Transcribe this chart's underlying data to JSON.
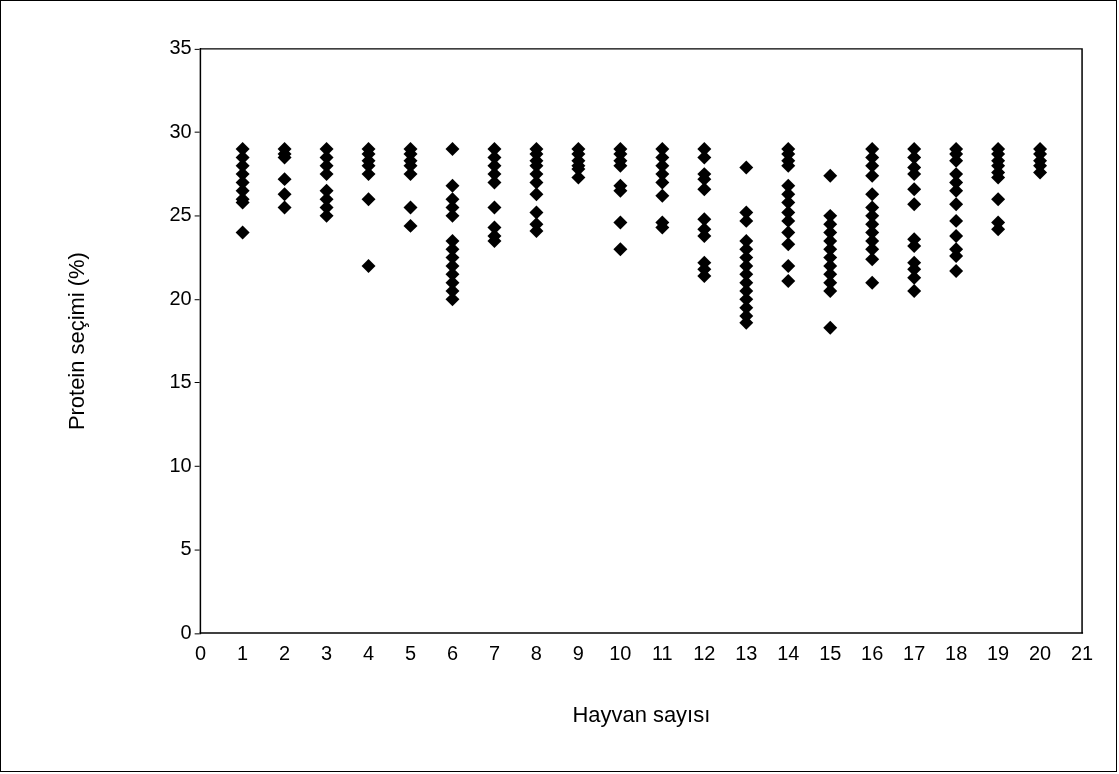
{
  "chart_data": {
    "type": "scatter",
    "xlabel": "Hayvan sayısı",
    "ylabel": "Protein seçimi (%)",
    "xlim": [
      0,
      21
    ],
    "xticks": [
      0,
      1,
      2,
      3,
      4,
      5,
      6,
      7,
      8,
      9,
      10,
      11,
      12,
      13,
      14,
      15,
      16,
      17,
      18,
      19,
      20,
      21
    ],
    "ylim": [
      0,
      35
    ],
    "yticks": [
      0,
      5,
      10,
      15,
      20,
      25,
      30,
      35
    ],
    "marker": "diamond",
    "grid": false,
    "legend": false,
    "series": [
      {
        "color": "#000000",
        "x": [
          1,
          1,
          1,
          1,
          1,
          1,
          1,
          1,
          1,
          2,
          2,
          2,
          2,
          2,
          2,
          3,
          3,
          3,
          3,
          3,
          3,
          3,
          3,
          4,
          4,
          4,
          4,
          4,
          4,
          4,
          5,
          5,
          5,
          5,
          5,
          5,
          5,
          6,
          6,
          6,
          6,
          6,
          6,
          6,
          6,
          6,
          6,
          6,
          6,
          6,
          7,
          7,
          7,
          7,
          7,
          7,
          7,
          7,
          7,
          8,
          8,
          8,
          8,
          8,
          8,
          8,
          8,
          8,
          8,
          9,
          9,
          9,
          9,
          9,
          9,
          10,
          10,
          10,
          10,
          10,
          10,
          10,
          10,
          11,
          11,
          11,
          11,
          11,
          11,
          11,
          11,
          12,
          12,
          12,
          12,
          12,
          12,
          12,
          12,
          12,
          12,
          12,
          13,
          13,
          13,
          13,
          13,
          13,
          13,
          13,
          13,
          13,
          13,
          13,
          13,
          13,
          14,
          14,
          14,
          14,
          14,
          14,
          14,
          14,
          14,
          14,
          14,
          14,
          14,
          15,
          15,
          15,
          15,
          15,
          15,
          15,
          15,
          15,
          15,
          15,
          15,
          16,
          16,
          16,
          16,
          16,
          16,
          16,
          16,
          16,
          16,
          16,
          16,
          16,
          17,
          17,
          17,
          17,
          17,
          17,
          17,
          17,
          17,
          17,
          17,
          17,
          18,
          18,
          18,
          18,
          18,
          18,
          18,
          18,
          18,
          18,
          18,
          18,
          19,
          19,
          19,
          19,
          19,
          19,
          19,
          19,
          19,
          20,
          20,
          20,
          20,
          20
        ],
        "values": [
          29,
          28.5,
          28,
          27.5,
          27,
          26.5,
          26,
          25.8,
          24,
          29,
          28.7,
          28.5,
          27.2,
          26.3,
          25.5,
          29,
          28.5,
          28,
          27.5,
          26.5,
          26,
          25.5,
          25,
          29,
          28.7,
          28.3,
          28,
          27.5,
          26,
          22,
          29,
          28.7,
          28.3,
          28,
          27.5,
          25.5,
          24.4,
          29,
          26.8,
          26,
          25.5,
          25,
          23.5,
          23,
          22.5,
          22,
          21.5,
          21,
          20.5,
          20,
          29,
          28.5,
          28,
          27.5,
          27,
          25.5,
          24.3,
          23.8,
          23.5,
          29,
          28.7,
          28.3,
          28,
          27.5,
          27,
          26.3,
          25.2,
          24.5,
          24.1,
          29,
          28.7,
          28.3,
          28,
          27.8,
          27.3,
          29,
          28.7,
          28.3,
          28,
          26.8,
          26.5,
          24.6,
          23,
          29,
          28.5,
          28,
          27.5,
          27,
          26.2,
          24.6,
          24.3,
          29,
          28.5,
          27.5,
          27.2,
          26.6,
          24.8,
          24.2,
          23.8,
          22.2,
          21.8,
          21.4,
          27.9,
          25.2,
          24.7,
          23.5,
          23,
          22.5,
          22,
          21.5,
          21,
          20.5,
          20,
          19.5,
          19,
          18.6,
          29,
          28.7,
          28.3,
          28,
          26.8,
          26.3,
          25.8,
          25.2,
          24.7,
          24,
          23.3,
          22,
          21.1,
          27.4,
          25,
          24.5,
          24,
          23.5,
          23,
          22.5,
          22,
          21.5,
          21,
          20.5,
          18.3,
          29,
          28.5,
          28,
          27.4,
          26.3,
          25.5,
          25,
          24.5,
          24,
          23.5,
          23,
          22.4,
          21,
          29,
          28.5,
          27.9,
          27.5,
          26.6,
          25.7,
          23.6,
          23.2,
          22.2,
          21.8,
          21.3,
          20.5,
          29,
          28.7,
          28.3,
          27.5,
          27,
          26.5,
          25.7,
          24.7,
          23.8,
          23,
          22.6,
          21.7,
          29,
          28.7,
          28.3,
          28,
          27.6,
          27.3,
          26,
          24.6,
          24.2,
          29,
          28.7,
          28.3,
          28,
          27.6
        ]
      }
    ]
  }
}
